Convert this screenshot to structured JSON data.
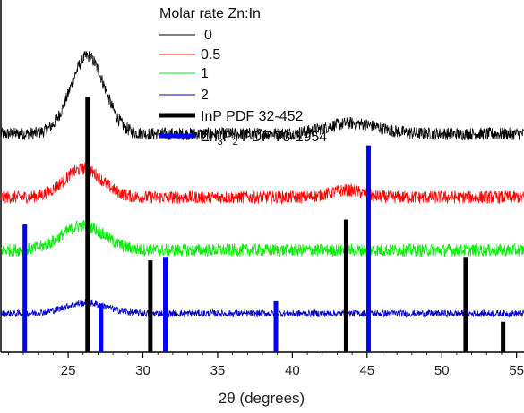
{
  "chart_data": {
    "type": "line",
    "title": "",
    "xlabel": "2θ (degrees)",
    "ylabel": "",
    "xlim": [
      20.5,
      55.5
    ],
    "xticks": [
      25,
      30,
      35,
      40,
      45,
      50,
      55
    ],
    "legend": {
      "title": "Molar rate Zn:In",
      "placement": "top-center",
      "entries": [
        {
          "label": "0",
          "color": "#000000",
          "kind": "line"
        },
        {
          "label": "0.5",
          "color": "#ff0000",
          "kind": "line"
        },
        {
          "label": "1",
          "color": "#00ee00",
          "kind": "line"
        },
        {
          "label": "2",
          "color": "#0000cc",
          "kind": "line"
        },
        {
          "label": "InP PDF 32-452",
          "color": "#000000",
          "kind": "thick"
        },
        {
          "label_main": "Zn",
          "sub1": "3",
          "label_mid": "P",
          "sub2": "2",
          "label_tail": " PDF 73-1954",
          "color": "#0000ff",
          "kind": "thick"
        }
      ]
    },
    "series": [
      {
        "name": "0",
        "color": "#000000",
        "baseline": 0.62,
        "peaks": [
          {
            "x": 26.3,
            "height": 0.22,
            "width": 1.6
          },
          {
            "x": 44.0,
            "height": 0.03,
            "width": 2.5
          }
        ],
        "noise": 0.018
      },
      {
        "name": "0.5",
        "color": "#ff0000",
        "baseline": 0.44,
        "peaks": [
          {
            "x": 26.0,
            "height": 0.08,
            "width": 1.8
          },
          {
            "x": 43.6,
            "height": 0.02,
            "width": 1.5
          }
        ],
        "noise": 0.018
      },
      {
        "name": "1",
        "color": "#00ee00",
        "baseline": 0.29,
        "peaks": [
          {
            "x": 26.0,
            "height": 0.07,
            "width": 2.0
          }
        ],
        "noise": 0.018
      },
      {
        "name": "2",
        "color": "#0000cc",
        "baseline": 0.11,
        "peaks": [
          {
            "x": 26.2,
            "height": 0.03,
            "width": 2.0
          }
        ],
        "noise": 0.01
      }
    ],
    "reference_lines": [
      {
        "name": "InP PDF 32-452",
        "color": "#000000",
        "positions": [
          26.3,
          30.5,
          43.6,
          51.6,
          54.1
        ],
        "intensities": [
          1.0,
          0.36,
          0.52,
          0.37,
          0.12
        ]
      },
      {
        "name": "Zn3P2 PDF 73-1954",
        "color": "#0000ff",
        "positions": [
          22.1,
          27.2,
          31.5,
          38.9,
          45.1
        ],
        "intensities": [
          0.5,
          0.19,
          0.37,
          0.2,
          0.81
        ]
      }
    ]
  }
}
